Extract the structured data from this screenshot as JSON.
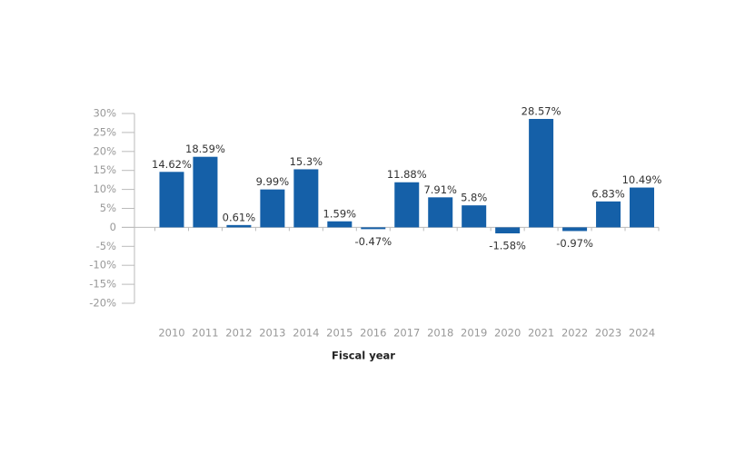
{
  "chart_data": {
    "type": "bar",
    "x_label": "Fiscal year",
    "categories": [
      "2010",
      "2011",
      "2012",
      "2013",
      "2014",
      "2015",
      "2016",
      "2017",
      "2018",
      "2019",
      "2020",
      "2021",
      "2022",
      "2023",
      "2024"
    ],
    "values": [
      14.62,
      18.59,
      0.61,
      9.99,
      15.3,
      1.59,
      -0.47,
      11.88,
      7.91,
      5.8,
      -1.58,
      28.57,
      -0.97,
      6.83,
      10.49
    ],
    "value_labels": [
      "14.62%",
      "18.59%",
      "0.61%",
      "9.99%",
      "15.3%",
      "1.59%",
      "-0.47%",
      "11.88%",
      "7.91%",
      "5.8%",
      "-1.58%",
      "28.57%",
      "-0.97%",
      "6.83%",
      "10.49%"
    ],
    "color": "#1560a8",
    "ylim": [
      -20,
      30
    ],
    "yticks": [
      {
        "value": 30,
        "label": "30%"
      },
      {
        "value": 25,
        "label": "25%"
      },
      {
        "value": 20,
        "label": "20%"
      },
      {
        "value": 15,
        "label": "15%"
      },
      {
        "value": 10,
        "label": "10%"
      },
      {
        "value": 5,
        "label": "5%"
      },
      0,
      {
        "value": -5,
        "label": "-5%"
      },
      {
        "value": -10,
        "label": "-10%"
      },
      {
        "value": -15,
        "label": "-15%"
      },
      {
        "value": -20,
        "label": "-20%"
      }
    ]
  }
}
